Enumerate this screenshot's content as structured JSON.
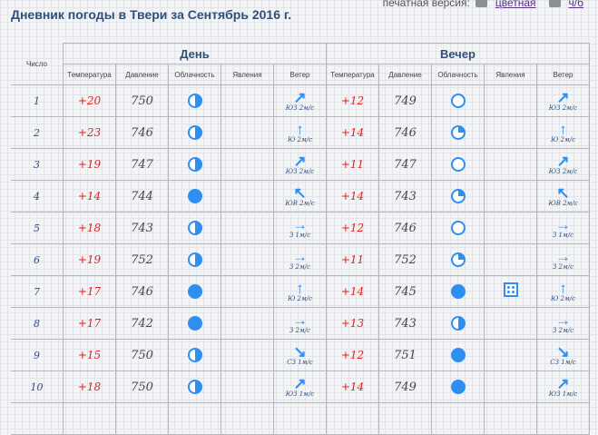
{
  "title": "Дневник погоды в Твери за Сентябрь 2016 г.",
  "print": {
    "label": "печатная версия:",
    "color": "цветная",
    "bw": "ч/б"
  },
  "header": {
    "number": "Число",
    "day": "День",
    "evening": "Вечер",
    "cols": [
      "Температура",
      "Давление",
      "Облачность",
      "Явления",
      "Ветер"
    ]
  },
  "rows": [
    {
      "n": "1",
      "d": {
        "t": "+20",
        "p": "750",
        "c": "half",
        "ph": "",
        "wd": "ЮЗ 2м/с",
        "wa": "↗"
      },
      "e": {
        "t": "+12",
        "p": "749",
        "c": "clear",
        "ph": "",
        "wd": "ЮЗ 2м/с",
        "wa": "↗"
      }
    },
    {
      "n": "2",
      "d": {
        "t": "+23",
        "p": "746",
        "c": "half",
        "ph": "",
        "wd": "Ю 2м/с",
        "wa": "↑"
      },
      "e": {
        "t": "+14",
        "p": "746",
        "c": "quarter",
        "ph": "",
        "wd": "Ю 2м/с",
        "wa": "↑"
      }
    },
    {
      "n": "3",
      "d": {
        "t": "+19",
        "p": "747",
        "c": "half",
        "ph": "",
        "wd": "ЮЗ 2м/с",
        "wa": "↗"
      },
      "e": {
        "t": "+11",
        "p": "747",
        "c": "clear",
        "ph": "",
        "wd": "ЮЗ 2м/с",
        "wa": "↗"
      }
    },
    {
      "n": "4",
      "d": {
        "t": "+14",
        "p": "744",
        "c": "full",
        "ph": "",
        "wd": "ЮВ 2м/с",
        "wa": "↖"
      },
      "e": {
        "t": "+14",
        "p": "743",
        "c": "quarter",
        "ph": "",
        "wd": "ЮВ 2м/с",
        "wa": "↖"
      }
    },
    {
      "n": "5",
      "d": {
        "t": "+18",
        "p": "743",
        "c": "half",
        "ph": "",
        "wd": "З 1м/с",
        "wa": "→"
      },
      "e": {
        "t": "+12",
        "p": "746",
        "c": "clear",
        "ph": "",
        "wd": "З 1м/с",
        "wa": "→"
      }
    },
    {
      "n": "6",
      "d": {
        "t": "+19",
        "p": "752",
        "c": "half",
        "ph": "",
        "wd": "З 2м/с",
        "wa": "→"
      },
      "e": {
        "t": "+11",
        "p": "752",
        "c": "quarter",
        "ph": "",
        "wd": "З 2м/с",
        "wa": "→"
      }
    },
    {
      "n": "7",
      "d": {
        "t": "+17",
        "p": "746",
        "c": "full",
        "ph": "",
        "wd": "Ю 2м/с",
        "wa": "↑"
      },
      "e": {
        "t": "+14",
        "p": "745",
        "c": "full",
        "ph": "rain",
        "wd": "Ю 2м/с",
        "wa": "↑"
      }
    },
    {
      "n": "8",
      "d": {
        "t": "+17",
        "p": "742",
        "c": "full",
        "ph": "",
        "wd": "З 2м/с",
        "wa": "→"
      },
      "e": {
        "t": "+13",
        "p": "743",
        "c": "half",
        "ph": "",
        "wd": "З 2м/с",
        "wa": "→"
      }
    },
    {
      "n": "9",
      "d": {
        "t": "+15",
        "p": "750",
        "c": "half",
        "ph": "",
        "wd": "СЗ 1м/с",
        "wa": "↘"
      },
      "e": {
        "t": "+12",
        "p": "751",
        "c": "full",
        "ph": "",
        "wd": "СЗ 1м/с",
        "wa": "↘"
      }
    },
    {
      "n": "10",
      "d": {
        "t": "+18",
        "p": "750",
        "c": "half",
        "ph": "",
        "wd": "ЮЗ 1м/с",
        "wa": "↗"
      },
      "e": {
        "t": "+14",
        "p": "749",
        "c": "full",
        "ph": "",
        "wd": "ЮЗ 1м/с",
        "wa": "↗"
      }
    }
  ],
  "colors": {
    "title": "#2f4f7a",
    "temp": "#e02020",
    "icon": "#2e8ff0"
  }
}
